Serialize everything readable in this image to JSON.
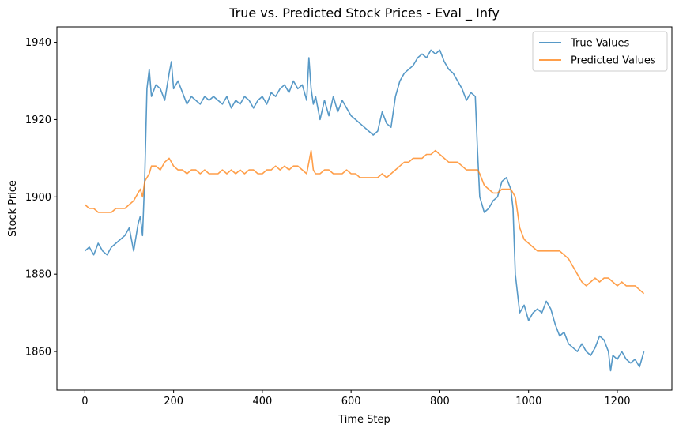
{
  "chart_data": {
    "type": "line",
    "title": "True vs. Predicted Stock Prices - Eval _ Infy",
    "xlabel": "Time Step",
    "ylabel": "Stock Price",
    "xlim": [
      -63,
      1323
    ],
    "ylim": [
      1850,
      1944
    ],
    "xticks": [
      0,
      200,
      400,
      600,
      800,
      1000,
      1200
    ],
    "yticks": [
      1860,
      1880,
      1900,
      1920,
      1940
    ],
    "grid": false,
    "legend_position": "upper right",
    "series": [
      {
        "name": "True Values",
        "color": "#1f77b4",
        "x": [
          0,
          10,
          20,
          30,
          40,
          50,
          60,
          70,
          80,
          90,
          100,
          110,
          120,
          125,
          130,
          135,
          140,
          145,
          150,
          160,
          170,
          180,
          190,
          195,
          200,
          210,
          220,
          230,
          240,
          250,
          260,
          270,
          280,
          290,
          300,
          310,
          320,
          330,
          340,
          350,
          360,
          370,
          380,
          390,
          400,
          410,
          420,
          430,
          440,
          450,
          460,
          470,
          480,
          490,
          500,
          505,
          510,
          515,
          520,
          530,
          540,
          550,
          560,
          570,
          580,
          590,
          600,
          610,
          620,
          630,
          640,
          650,
          660,
          670,
          680,
          690,
          700,
          710,
          720,
          730,
          740,
          750,
          760,
          770,
          780,
          790,
          800,
          810,
          820,
          830,
          840,
          850,
          860,
          870,
          880,
          885,
          890,
          895,
          900,
          910,
          920,
          930,
          940,
          950,
          960,
          965,
          970,
          975,
          980,
          990,
          1000,
          1010,
          1020,
          1030,
          1040,
          1050,
          1060,
          1070,
          1080,
          1090,
          1100,
          1110,
          1120,
          1130,
          1140,
          1150,
          1160,
          1170,
          1180,
          1185,
          1190,
          1200,
          1210,
          1220,
          1230,
          1240,
          1250,
          1260
        ],
        "values": [
          1886,
          1887,
          1885,
          1888,
          1886,
          1885,
          1887,
          1888,
          1889,
          1890,
          1892,
          1886,
          1893,
          1895,
          1890,
          1905,
          1928,
          1933,
          1926,
          1929,
          1928,
          1925,
          1932,
          1935,
          1928,
          1930,
          1927,
          1924,
          1926,
          1925,
          1924,
          1926,
          1925,
          1926,
          1925,
          1924,
          1926,
          1923,
          1925,
          1924,
          1926,
          1925,
          1923,
          1925,
          1926,
          1924,
          1927,
          1926,
          1928,
          1929,
          1927,
          1930,
          1928,
          1929,
          1925,
          1936,
          1928,
          1924,
          1926,
          1920,
          1925,
          1921,
          1926,
          1922,
          1925,
          1923,
          1921,
          1920,
          1919,
          1918,
          1917,
          1916,
          1917,
          1922,
          1919,
          1918,
          1926,
          1930,
          1932,
          1933,
          1934,
          1936,
          1937,
          1936,
          1938,
          1937,
          1938,
          1935,
          1933,
          1932,
          1930,
          1928,
          1925,
          1927,
          1926,
          1912,
          1900,
          1898,
          1896,
          1897,
          1899,
          1900,
          1904,
          1905,
          1902,
          1897,
          1880,
          1875,
          1870,
          1872,
          1868,
          1870,
          1871,
          1870,
          1873,
          1871,
          1867,
          1864,
          1865,
          1862,
          1861,
          1860,
          1862,
          1860,
          1859,
          1861,
          1864,
          1863,
          1860,
          1855,
          1859,
          1858,
          1860,
          1858,
          1857,
          1858,
          1856,
          1860
        ]
      },
      {
        "name": "Predicted Values",
        "color": "#ff7f0e",
        "x": [
          0,
          10,
          20,
          30,
          40,
          50,
          60,
          70,
          80,
          90,
          100,
          110,
          120,
          125,
          130,
          135,
          140,
          145,
          150,
          160,
          170,
          180,
          190,
          200,
          210,
          220,
          230,
          240,
          250,
          260,
          270,
          280,
          290,
          300,
          310,
          320,
          330,
          340,
          350,
          360,
          370,
          380,
          390,
          400,
          410,
          420,
          430,
          440,
          450,
          460,
          470,
          480,
          490,
          500,
          510,
          515,
          520,
          530,
          540,
          550,
          560,
          570,
          580,
          590,
          600,
          610,
          620,
          630,
          640,
          650,
          660,
          670,
          680,
          690,
          700,
          710,
          720,
          730,
          740,
          750,
          760,
          770,
          780,
          790,
          800,
          810,
          820,
          830,
          840,
          850,
          860,
          870,
          880,
          885,
          890,
          900,
          910,
          920,
          930,
          940,
          950,
          960,
          965,
          970,
          975,
          980,
          990,
          1000,
          1010,
          1020,
          1030,
          1040,
          1050,
          1060,
          1070,
          1080,
          1090,
          1100,
          1110,
          1120,
          1130,
          1140,
          1150,
          1160,
          1170,
          1180,
          1190,
          1200,
          1210,
          1220,
          1230,
          1240,
          1250,
          1260
        ],
        "values": [
          1898,
          1897,
          1897,
          1896,
          1896,
          1896,
          1896,
          1897,
          1897,
          1897,
          1898,
          1899,
          1901,
          1902,
          1900,
          1904,
          1905,
          1906,
          1908,
          1908,
          1907,
          1909,
          1910,
          1908,
          1907,
          1907,
          1906,
          1907,
          1907,
          1906,
          1907,
          1906,
          1906,
          1906,
          1907,
          1906,
          1907,
          1906,
          1907,
          1906,
          1907,
          1907,
          1906,
          1906,
          1907,
          1907,
          1908,
          1907,
          1908,
          1907,
          1908,
          1908,
          1907,
          1906,
          1912,
          1907,
          1906,
          1906,
          1907,
          1907,
          1906,
          1906,
          1906,
          1907,
          1906,
          1906,
          1905,
          1905,
          1905,
          1905,
          1905,
          1906,
          1905,
          1906,
          1907,
          1908,
          1909,
          1909,
          1910,
          1910,
          1910,
          1911,
          1911,
          1912,
          1911,
          1910,
          1909,
          1909,
          1909,
          1908,
          1907,
          1907,
          1907,
          1907,
          1906,
          1903,
          1902,
          1901,
          1901,
          1902,
          1902,
          1902,
          1901,
          1900,
          1896,
          1892,
          1889,
          1888,
          1887,
          1886,
          1886,
          1886,
          1886,
          1886,
          1886,
          1885,
          1884,
          1882,
          1880,
          1878,
          1877,
          1878,
          1879,
          1878,
          1879,
          1879,
          1878,
          1877,
          1878,
          1877,
          1877,
          1877,
          1876,
          1875
        ]
      }
    ]
  }
}
